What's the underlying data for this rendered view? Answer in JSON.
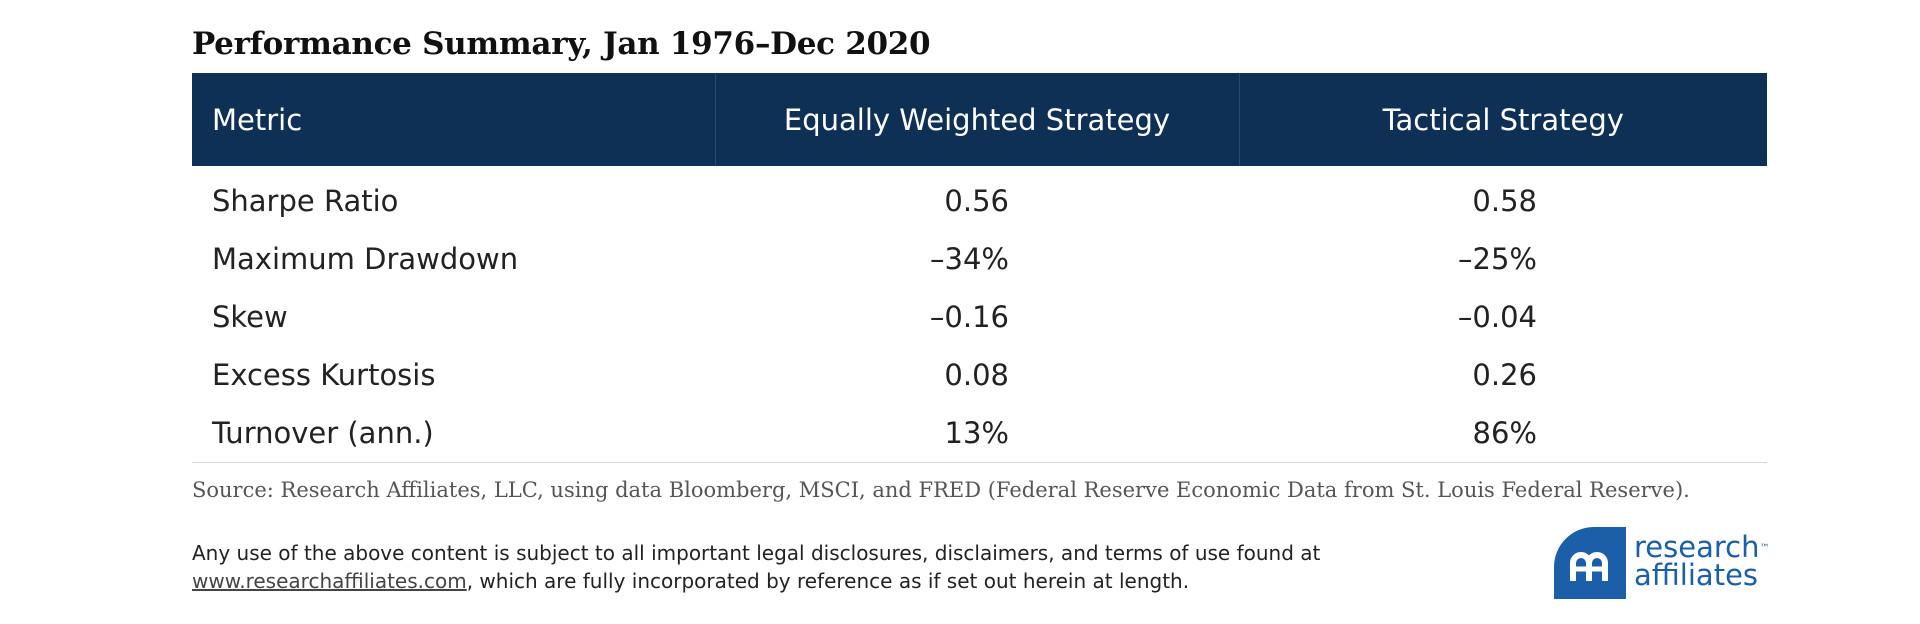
{
  "title": "Performance Summary, Jan 1976–Dec 2020",
  "chart_data": {
    "type": "table",
    "title": "Performance Summary, Jan 1976–Dec 2020",
    "columns": [
      "Metric",
      "Equally Weighted Strategy",
      "Tactical Strategy"
    ],
    "rows": [
      [
        "Sharpe Ratio",
        "0.56",
        "0.58"
      ],
      [
        "Maximum Drawdown",
        "–34%",
        "–25%"
      ],
      [
        "Skew",
        "–0.16",
        "–0.04"
      ],
      [
        "Excess Kurtosis",
        "0.08",
        "0.26"
      ],
      [
        "Turnover (ann.)",
        "13%",
        "86%"
      ]
    ]
  },
  "source": "Source: Research Affiliates, LLC, using data Bloomberg, MSCI, and FRED (Federal Reserve Economic Data from St. Louis Federal Reserve).",
  "disclaimer": {
    "line1": "Any use of the above content is subject to all important legal disclosures, disclaimers, and terms of use found at",
    "link": "www.researchaffiliates.com",
    "line2_rest": ", which are fully incorporated by reference as if set out herein at length."
  },
  "logo": {
    "line1": "research",
    "line2": "affiliates",
    "tm": "™",
    "color": "#1a5fa8"
  },
  "colors": {
    "header_bg": "#0f3055",
    "header_text": "#ffffff"
  }
}
